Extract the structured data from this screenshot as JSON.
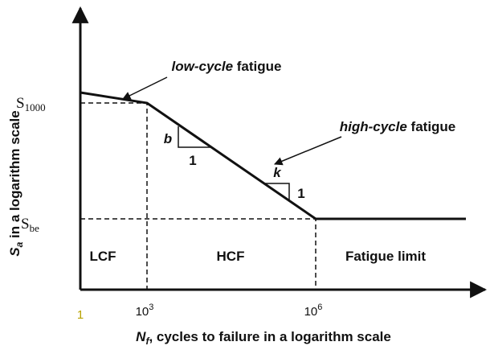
{
  "levels": {
    "s1000": {
      "base": "S",
      "sub": "1000"
    },
    "sbe": {
      "base": "S",
      "sub": "be"
    }
  },
  "x_ticks": [
    {
      "base": "1"
    },
    {
      "base": "10",
      "sup": "3"
    },
    {
      "base": "10",
      "sup": "6"
    }
  ],
  "axis_titles": {
    "y": {
      "base": "S",
      "sub": "a",
      "rest": " in a logarithm scale"
    },
    "x": {
      "base": "N",
      "sub": "f",
      "rest": ", cycles to failure in a logarithm scale"
    }
  },
  "annotations": {
    "low_cycle": {
      "italic": "low-cycle",
      "rest": " fatigue"
    },
    "high_cycle": {
      "italic": "high-cycle",
      "rest": " fatigue"
    }
  },
  "slopes": {
    "b": {
      "rise": "b",
      "run": "1"
    },
    "k": {
      "rise": "k",
      "run": "1"
    }
  },
  "regions": [
    "LCF",
    "HCF",
    "Fatigue limit"
  ]
}
